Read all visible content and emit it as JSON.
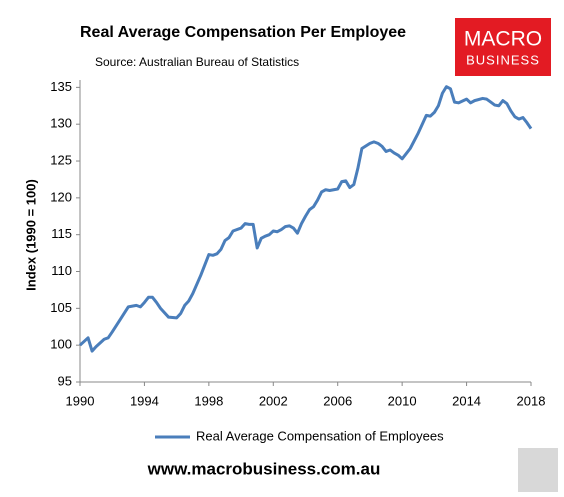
{
  "chart_data": {
    "type": "line",
    "title": "Real Average Compensation Per Employee",
    "subtitle": "Source: Australian Bureau of Statistics",
    "y_label": "Index (1990 = 100)",
    "x": [
      1990,
      1990.5,
      1990.75,
      1991,
      1991.5,
      1991.75,
      1992,
      1992.5,
      1993,
      1993.5,
      1993.75,
      1994,
      1994.25,
      1994.5,
      1994.75,
      1995,
      1995.5,
      1996,
      1996.25,
      1996.5,
      1996.75,
      1997,
      1997.5,
      1998,
      1998.25,
      1998.5,
      1998.75,
      1999,
      1999.25,
      1999.5,
      2000,
      2000.25,
      2000.5,
      2000.75,
      2001,
      2001.25,
      2001.5,
      2001.75,
      2002,
      2002.25,
      2002.5,
      2002.75,
      2003,
      2003.25,
      2003.5,
      2003.75,
      2004,
      2004.25,
      2004.5,
      2004.75,
      2005,
      2005.25,
      2005.5,
      2005.75,
      2006,
      2006.25,
      2006.5,
      2006.75,
      2007,
      2007.25,
      2007.5,
      2008,
      2008.25,
      2008.5,
      2008.75,
      2009,
      2009.25,
      2009.5,
      2009.75,
      2010,
      2010.25,
      2010.5,
      2011,
      2011.5,
      2011.75,
      2012,
      2012.25,
      2012.5,
      2012.75,
      2013,
      2013.25,
      2013.5,
      2014,
      2014.25,
      2014.5,
      2015,
      2015.25,
      2015.5,
      2015.75,
      2016,
      2016.25,
      2016.5,
      2016.75,
      2017,
      2017.25,
      2017.5,
      2017.75,
      2018
    ],
    "series": [
      {
        "name": "Real Average Compensation of Employees",
        "color": "#4a7ebb",
        "values": [
          100,
          101,
          99.2,
          99.8,
          100.8,
          101,
          101.8,
          103.5,
          105.2,
          105.4,
          105.2,
          105.8,
          106.5,
          106.5,
          105.8,
          105,
          103.8,
          103.7,
          104.3,
          105.4,
          106,
          107,
          109.5,
          112.3,
          112.2,
          112.4,
          113,
          114.2,
          114.6,
          115.5,
          115.9,
          116.5,
          116.4,
          116.4,
          113.2,
          114.5,
          114.8,
          115,
          115.5,
          115.4,
          115.7,
          116.1,
          116.2,
          115.9,
          115.2,
          116.5,
          117.5,
          118.4,
          118.8,
          119.7,
          120.8,
          121.1,
          121,
          121.1,
          121.2,
          122.2,
          122.3,
          121.4,
          121.8,
          124,
          126.7,
          127.4,
          127.6,
          127.4,
          127,
          126.3,
          126.5,
          126.1,
          125.8,
          125.3,
          126,
          126.7,
          128.8,
          131.2,
          131.1,
          131.6,
          132.5,
          134.2,
          135.1,
          134.8,
          133,
          132.9,
          133.4,
          132.9,
          133.2,
          133.5,
          133.4,
          133,
          132.6,
          132.5,
          133.2,
          132.8,
          131.8,
          131,
          130.7,
          130.9,
          130.2,
          129.4
        ]
      }
    ],
    "xlim": [
      1990,
      2018
    ],
    "xticks": [
      1990,
      1994,
      1998,
      2002,
      2006,
      2010,
      2014,
      2018
    ],
    "ylim": [
      95,
      136
    ],
    "yticks": [
      95,
      100,
      105,
      110,
      115,
      120,
      125,
      130,
      135
    ],
    "grid": false,
    "legend": "bottom"
  },
  "branding": {
    "logo": [
      "MACRO",
      "BUSINESS"
    ],
    "url": "www.macrobusiness.com.au"
  }
}
